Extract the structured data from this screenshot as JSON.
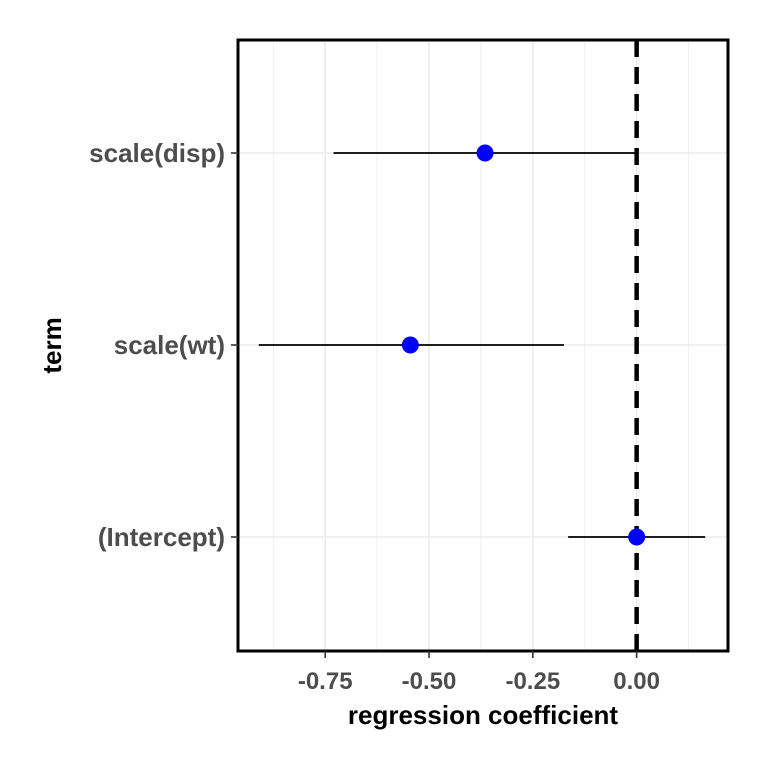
{
  "chart_data": {
    "type": "scatter",
    "subtype": "coefficient-plot",
    "xlabel": "regression coefficient",
    "ylabel": "term",
    "xlim": [
      -0.96,
      0.22
    ],
    "x_ticks": [
      -0.75,
      -0.5,
      -0.25,
      0.0
    ],
    "x_tick_labels": [
      "-0.75",
      "-0.50",
      "-0.25",
      "0.00"
    ],
    "categories": [
      "scale(disp)",
      "scale(wt)",
      "(Intercept)"
    ],
    "series": [
      {
        "estimate": [
          -0.365,
          -0.545,
          0.0
        ],
        "ci_low": [
          -0.73,
          -0.91,
          -0.165
        ],
        "ci_high": [
          0.0,
          -0.175,
          0.165
        ]
      }
    ],
    "reference_line": {
      "x": 0,
      "style": "dashed"
    },
    "grid": true,
    "colors": {
      "point": "#0000ff",
      "errorbar": "#000000",
      "reference": "#000000",
      "grid": "#ebebeb"
    }
  }
}
